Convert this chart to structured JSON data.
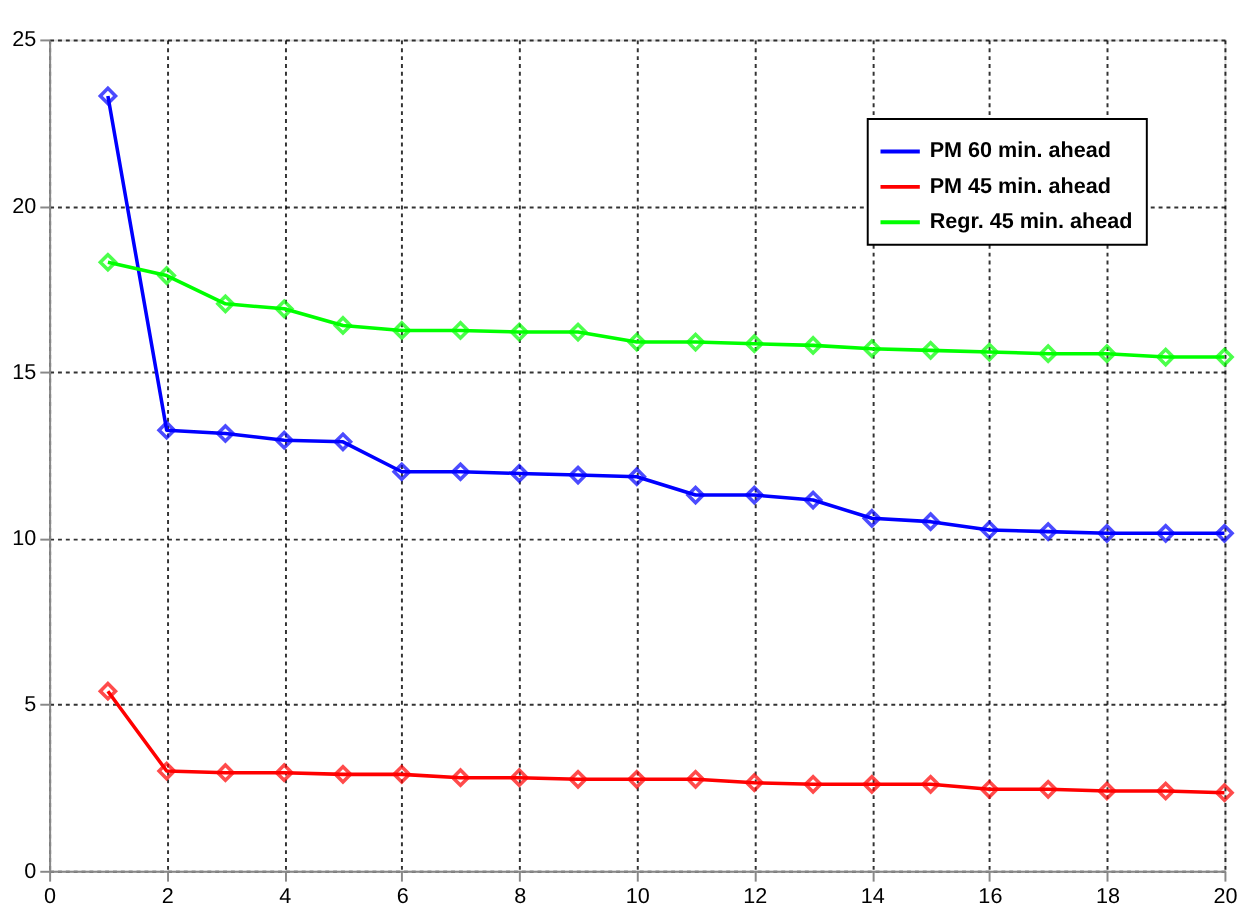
{
  "chart_data": {
    "type": "line",
    "x": [
      1,
      2,
      3,
      4,
      5,
      6,
      7,
      8,
      9,
      10,
      11,
      12,
      13,
      14,
      15,
      16,
      17,
      18,
      19,
      20
    ],
    "series": [
      {
        "name": "PM 60 min. ahead",
        "color": "#0000ff",
        "values": [
          23.3,
          13.25,
          13.15,
          12.95,
          12.9,
          12.0,
          12.0,
          11.95,
          11.9,
          11.85,
          11.3,
          11.3,
          11.15,
          10.6,
          10.5,
          10.25,
          10.2,
          10.15,
          10.15,
          10.15
        ]
      },
      {
        "name": "PM 45 min. ahead",
        "color": "#ff0000",
        "values": [
          5.4,
          3.0,
          2.95,
          2.95,
          2.9,
          2.9,
          2.8,
          2.8,
          2.75,
          2.75,
          2.75,
          2.65,
          2.6,
          2.6,
          2.6,
          2.45,
          2.45,
          2.4,
          2.4,
          2.35
        ]
      },
      {
        "name": "Regr. 45 min. ahead",
        "color": "#00ff00",
        "values": [
          18.3,
          17.9,
          17.05,
          16.9,
          16.4,
          16.25,
          16.25,
          16.2,
          16.2,
          15.9,
          15.9,
          15.85,
          15.8,
          15.7,
          15.65,
          15.6,
          15.55,
          15.55,
          15.45,
          15.45
        ]
      }
    ],
    "xlim": [
      0,
      20
    ],
    "xticks": [
      0,
      2,
      4,
      6,
      8,
      10,
      12,
      14,
      16,
      18,
      20
    ],
    "ylim": [
      0,
      25
    ],
    "yticks": [
      0,
      5,
      10,
      15,
      20,
      25
    ],
    "grid": true,
    "legend": "top right",
    "marker": "diamond",
    "line_style": "solid"
  }
}
